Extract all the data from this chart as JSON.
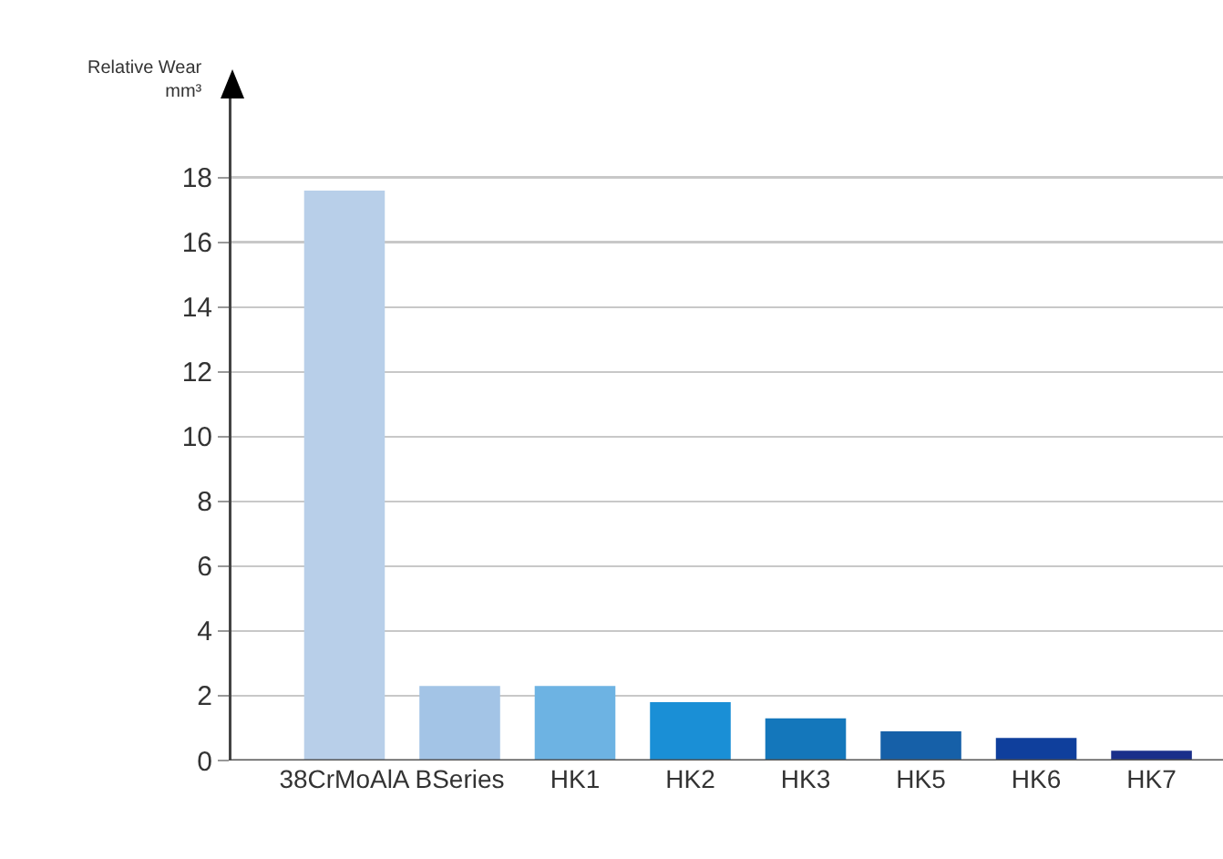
{
  "chart_data": {
    "type": "bar",
    "ylabel": "Relative Wear\nmm³",
    "categories": [
      "38CrMoAlA",
      "BSeries",
      "HK1",
      "HK2",
      "HK3",
      "HK5",
      "HK6",
      "HK7"
    ],
    "values": [
      17.6,
      2.3,
      2.3,
      1.8,
      1.3,
      0.9,
      0.7,
      0.3
    ],
    "colors": [
      "#b8cfe9",
      "#a3c4e6",
      "#6db3e3",
      "#1a8fd6",
      "#1477bb",
      "#1660a8",
      "#0f3f9c",
      "#1a2f8a"
    ],
    "ylim": [
      0,
      20.5
    ],
    "yticks": [
      0,
      2,
      4,
      6,
      8,
      10,
      12,
      14,
      16,
      18
    ],
    "grid": "y"
  }
}
